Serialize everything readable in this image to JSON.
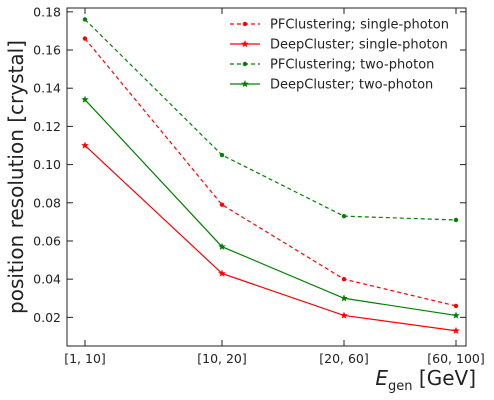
{
  "chart_data": {
    "type": "line",
    "categories": [
      "[1, 10]",
      "[10, 20]",
      "[20, 60]",
      "[60, 100]"
    ],
    "ylabel": "position resolution [crystal]",
    "xlabel_main": "E",
    "xlabel_sub": "gen",
    "xlabel_unit": " [GeV]",
    "ylim": [
      0.005,
      0.182
    ],
    "yticks": [
      0.02,
      0.04,
      0.06,
      0.08,
      0.1,
      0.12,
      0.14,
      0.16,
      0.18
    ],
    "ytick_labels": [
      "0.02",
      "0.04",
      "0.06",
      "0.08",
      "0.10",
      "0.12",
      "0.14",
      "0.16",
      "0.18"
    ],
    "grid": false,
    "legend_position": "top-right",
    "series": [
      {
        "name": "PFClustering; single-photon",
        "values": [
          0.166,
          0.079,
          0.04,
          0.026
        ],
        "color": "#ff0000",
        "dashed": true,
        "marker": "dot"
      },
      {
        "name": "DeepCluster; single-photon",
        "values": [
          0.11,
          0.043,
          0.021,
          0.013
        ],
        "color": "#ff0000",
        "dashed": false,
        "marker": "star"
      },
      {
        "name": "PFClustering; two-photon",
        "values": [
          0.176,
          0.105,
          0.073,
          0.071
        ],
        "color": "#008000",
        "dashed": true,
        "marker": "dot"
      },
      {
        "name": "DeepCluster; two-photon",
        "values": [
          0.134,
          0.057,
          0.03,
          0.021
        ],
        "color": "#008000",
        "dashed": false,
        "marker": "star"
      }
    ]
  }
}
